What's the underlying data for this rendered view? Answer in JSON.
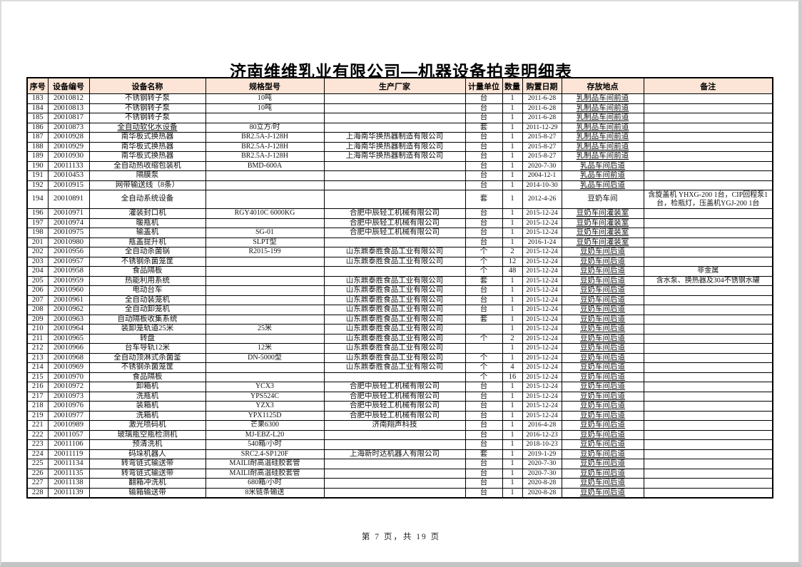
{
  "page": {
    "title": "济南维维乳业有限公司—机器设备拍卖明细表",
    "footer": "第 7 页，共 19 页"
  },
  "table": {
    "headers": [
      "序号",
      "设备编号",
      "设备名称",
      "规格型号",
      "生产厂家",
      "计量单位",
      "数量",
      "购置日期",
      "存放地点",
      "备注"
    ],
    "rows": [
      {
        "no": "183",
        "code": "20010812",
        "name": "不锈钢转子泵",
        "spec": "10吨",
        "mfr": "",
        "unit": "台",
        "qty": "1",
        "date": "2011-6-28",
        "loc": "乳制品车间前道",
        "note": ""
      },
      {
        "no": "184",
        "code": "20010813",
        "name": "不锈钢转子泵",
        "spec": "10吨",
        "mfr": "",
        "unit": "台",
        "qty": "1",
        "date": "2011-6-28",
        "loc": "乳制品车间前道",
        "note": ""
      },
      {
        "no": "185",
        "code": "20010817",
        "name": "不锈钢转子泵",
        "spec": "",
        "mfr": "",
        "unit": "台",
        "qty": "1",
        "date": "2011-6-28",
        "loc": "乳制品车间前道",
        "note": ""
      },
      {
        "no": "186",
        "code": "20010873",
        "name": "全自动软化水设备",
        "spec": "80立方/时",
        "mfr": "",
        "unit": "套",
        "qty": "1",
        "date": "2011-12-29",
        "loc": "乳制品车间前道",
        "note": "",
        "nameUnderline": true
      },
      {
        "no": "187",
        "code": "20010928",
        "name": "南华板式换热器",
        "spec": "BR2.5A-J-128H",
        "mfr": "上海南华换热器制造有限公司",
        "unit": "台",
        "qty": "1",
        "date": "2015-8-27",
        "loc": "乳制品车间前道",
        "note": ""
      },
      {
        "no": "188",
        "code": "20010929",
        "name": "南华板式换热器",
        "spec": "BR2.5A-J-128H",
        "mfr": "上海南华换热器制造有限公司",
        "unit": "台",
        "qty": "1",
        "date": "2015-8-27",
        "loc": "乳制品车间前道",
        "note": ""
      },
      {
        "no": "189",
        "code": "20010930",
        "name": "南华板式换热器",
        "spec": "BR2.5A-J-128H",
        "mfr": "上海南华换热器制造有限公司",
        "unit": "台",
        "qty": "1",
        "date": "2015-8-27",
        "loc": "乳制品车间前道",
        "note": ""
      },
      {
        "no": "190",
        "code": "20011133",
        "name": "全自动热收缩包装机",
        "spec": "BMD-600A",
        "mfr": "",
        "unit": "台",
        "qty": "1",
        "date": "2020-7-30",
        "loc": "乳品车间后道",
        "note": ""
      },
      {
        "no": "191",
        "code": "20010453",
        "name": "隔膜泵",
        "spec": "",
        "mfr": "",
        "unit": "台",
        "qty": "1",
        "date": "2004-12-1",
        "loc": "乳品车间前道",
        "note": ""
      },
      {
        "no": "192",
        "code": "20010915",
        "name": "网带输送线（8条）",
        "spec": "",
        "mfr": "",
        "unit": "台",
        "qty": "1",
        "date": "2014-10-30",
        "loc": "乳品车间后道",
        "note": ""
      },
      {
        "no": "194",
        "code": "20010891",
        "name": "全自动系统设备",
        "spec": "",
        "mfr": "",
        "unit": "套",
        "qty": "1",
        "date": "2012-4-26",
        "loc": "豆奶车间",
        "note": "含旋盖机 YHXG-200 1台，CIP回程泵1台，检瓶灯，压盖机YGJ-200 1台",
        "tall": true,
        "locPlain": true
      },
      {
        "no": "196",
        "code": "20010971",
        "name": "灌装封口机",
        "spec": "RGY4010C 6000KG",
        "mfr": "合肥中辰轻工机械有限公司",
        "unit": "台",
        "qty": "1",
        "date": "2015-12-24",
        "loc": "豆奶车间灌装室",
        "note": ""
      },
      {
        "no": "197",
        "code": "20010974",
        "name": "暖瓶机",
        "spec": "",
        "mfr": "合肥中辰轻工机械有限公司",
        "unit": "台",
        "qty": "1",
        "date": "2015-12-24",
        "loc": "豆奶车间灌装室",
        "note": ""
      },
      {
        "no": "198",
        "code": "20010975",
        "name": "输盖机",
        "spec": "SG-01",
        "mfr": "合肥中辰轻工机械有限公司",
        "unit": "台",
        "qty": "1",
        "date": "2015-12-24",
        "loc": "豆奶车间灌装室",
        "note": ""
      },
      {
        "no": "201",
        "code": "20010980",
        "name": "瓶盖提升机",
        "spec": "SLPT型",
        "mfr": "",
        "unit": "台",
        "qty": "1",
        "date": "2016-1-24",
        "loc": "豆奶车间灌装室",
        "note": ""
      },
      {
        "no": "202",
        "code": "20010956",
        "name": "全自动杀菌锅",
        "spec": "R2015-199",
        "mfr": "山东鼎泰胜食品工业有限公司",
        "unit": "个",
        "qty": "2",
        "date": "2015-12-24",
        "loc": "豆奶车间后道",
        "note": ""
      },
      {
        "no": "203",
        "code": "20010957",
        "name": "不锈钢杀菌笼筐",
        "spec": "",
        "mfr": "山东鼎泰胜食品工业有限公司",
        "unit": "个",
        "qty": "12",
        "date": "2015-12-24",
        "loc": "豆奶车间后道",
        "note": ""
      },
      {
        "no": "204",
        "code": "20010958",
        "name": "食品隔板",
        "spec": "",
        "mfr": "",
        "unit": "个",
        "qty": "48",
        "date": "2015-12-24",
        "loc": "豆奶车间后道",
        "note": "非金属"
      },
      {
        "no": "205",
        "code": "20010959",
        "name": "热能利用系统",
        "spec": "",
        "mfr": "山东鼎泰胜食品工业有限公司",
        "unit": "套",
        "qty": "1",
        "date": "2015-12-24",
        "loc": "豆奶车间后道",
        "note": "含水泵、换热器及304不锈钢水罐"
      },
      {
        "no": "206",
        "code": "20010960",
        "name": "电动台车",
        "spec": "",
        "mfr": "山东鼎泰胜食品工业有限公司",
        "unit": "台",
        "qty": "1",
        "date": "2015-12-24",
        "loc": "豆奶车间后道",
        "note": ""
      },
      {
        "no": "207",
        "code": "20010961",
        "name": "全自动装笼机",
        "spec": "",
        "mfr": "山东鼎泰胜食品工业有限公司",
        "unit": "台",
        "qty": "1",
        "date": "2015-12-24",
        "loc": "豆奶车间后道",
        "note": ""
      },
      {
        "no": "208",
        "code": "20010962",
        "name": "全自动卸笼机",
        "spec": "",
        "mfr": "山东鼎泰胜食品工业有限公司",
        "unit": "台",
        "qty": "1",
        "date": "2015-12-24",
        "loc": "豆奶车间后道",
        "note": ""
      },
      {
        "no": "209",
        "code": "20010963",
        "name": "自动隔板收集系统",
        "spec": "",
        "mfr": "山东鼎泰胜食品工业有限公司",
        "unit": "套",
        "qty": "1",
        "date": "2015-12-24",
        "loc": "豆奶车间后道",
        "note": ""
      },
      {
        "no": "210",
        "code": "20010964",
        "name": "装卸笼轨道25米",
        "spec": "25米",
        "mfr": "山东鼎泰胜食品工业有限公司",
        "unit": "",
        "qty": "1",
        "date": "2015-12-24",
        "loc": "豆奶车间后道",
        "note": ""
      },
      {
        "no": "211",
        "code": "20010965",
        "name": "转盘",
        "spec": "",
        "mfr": "山东鼎泰胜食品工业有限公司",
        "unit": "个",
        "qty": "2",
        "date": "2015-12-24",
        "loc": "豆奶车间后道",
        "note": ""
      },
      {
        "no": "212",
        "code": "20010966",
        "name": "台车导轨12米",
        "spec": "12米",
        "mfr": "山东鼎泰胜食品工业有限公司",
        "unit": "",
        "qty": "1",
        "date": "2015-12-24",
        "loc": "豆奶车间后道",
        "note": ""
      },
      {
        "no": "213",
        "code": "20010968",
        "name": "全自动顶淋式杀菌釜",
        "spec": "DN-5000型",
        "mfr": "山东鼎泰胜食品工业有限公司",
        "unit": "个",
        "qty": "1",
        "date": "2015-12-24",
        "loc": "豆奶车间后道",
        "note": ""
      },
      {
        "no": "214",
        "code": "20010969",
        "name": "不锈钢杀菌笼筐",
        "spec": "",
        "mfr": "山东鼎泰胜食品工业有限公司",
        "unit": "个",
        "qty": "4",
        "date": "2015-12-24",
        "loc": "豆奶车间后道",
        "note": ""
      },
      {
        "no": "215",
        "code": "20010970",
        "name": "食品隔板",
        "spec": "",
        "mfr": "",
        "unit": "个",
        "qty": "16",
        "date": "2015-12-24",
        "loc": "豆奶车间后道",
        "note": ""
      },
      {
        "no": "216",
        "code": "20010972",
        "name": "卸箱机",
        "spec": "YCX3",
        "mfr": "合肥中辰轻工机械有限公司",
        "unit": "台",
        "qty": "1",
        "date": "2015-12-24",
        "loc": "豆奶车间后道",
        "note": ""
      },
      {
        "no": "217",
        "code": "20010973",
        "name": "洗瓶机",
        "spec": "YPS524C",
        "mfr": "合肥中辰轻工机械有限公司",
        "unit": "台",
        "qty": "1",
        "date": "2015-12-24",
        "loc": "豆奶车间后道",
        "note": ""
      },
      {
        "no": "218",
        "code": "20010976",
        "name": "装箱机",
        "spec": "YZX3",
        "mfr": "合肥中辰轻工机械有限公司",
        "unit": "台",
        "qty": "1",
        "date": "2015-12-24",
        "loc": "豆奶车间后道",
        "note": ""
      },
      {
        "no": "219",
        "code": "20010977",
        "name": "洗箱机",
        "spec": "YPX1125D",
        "mfr": "合肥中辰轻工机械有限公司",
        "unit": "台",
        "qty": "1",
        "date": "2015-12-24",
        "loc": "豆奶车间后道",
        "note": ""
      },
      {
        "no": "221",
        "code": "20010989",
        "name": "激光喷码机",
        "spec": "芒果6300",
        "mfr": "济南翔声科技",
        "unit": "台",
        "qty": "1",
        "date": "2016-4-28",
        "loc": "豆奶车间后道",
        "note": ""
      },
      {
        "no": "222",
        "code": "20011057",
        "name": "玻璃瓶空瓶检测机",
        "spec": "MJ-EBZ-L20",
        "mfr": "",
        "unit": "台",
        "qty": "1",
        "date": "2016-12-23",
        "loc": "豆奶车间后道",
        "note": ""
      },
      {
        "no": "223",
        "code": "20011106",
        "name": "预清洗机",
        "spec": "540箱/小时",
        "mfr": "",
        "unit": "台",
        "qty": "1",
        "date": "2018-10-23",
        "loc": "豆奶车间后道",
        "note": ""
      },
      {
        "no": "224",
        "code": "20011119",
        "name": "码垛机器人",
        "spec": "SRC2.4-SP120F",
        "mfr": "上海新时达机器人有限公司",
        "unit": "套",
        "qty": "1",
        "date": "2019-1-29",
        "loc": "豆奶车间后道",
        "note": ""
      },
      {
        "no": "225",
        "code": "20011134",
        "name": "转弯链式输送带",
        "spec": "MAILI耐高温硅胶套管",
        "mfr": "",
        "unit": "台",
        "qty": "1",
        "date": "2020-7-30",
        "loc": "豆奶车间后道",
        "note": ""
      },
      {
        "no": "226",
        "code": "20011135",
        "name": "转弯链式输送带",
        "spec": "MAILI耐高温硅胶套管",
        "mfr": "",
        "unit": "台",
        "qty": "1",
        "date": "2020-7-30",
        "loc": "豆奶车间后道",
        "note": ""
      },
      {
        "no": "227",
        "code": "20011138",
        "name": "翻箱冲洗机",
        "spec": "680箱/小时",
        "mfr": "",
        "unit": "台",
        "qty": "1",
        "date": "2020-8-28",
        "loc": "豆奶车间后道",
        "note": ""
      },
      {
        "no": "228",
        "code": "20011139",
        "name": "输箱输送带",
        "spec": "8米链条输送",
        "mfr": "",
        "unit": "台",
        "qty": "1",
        "date": "2020-8-28",
        "loc": "豆奶车间后道",
        "note": ""
      }
    ]
  },
  "style": {
    "header_bg": "#fce4d6",
    "border_color": "#000000"
  }
}
